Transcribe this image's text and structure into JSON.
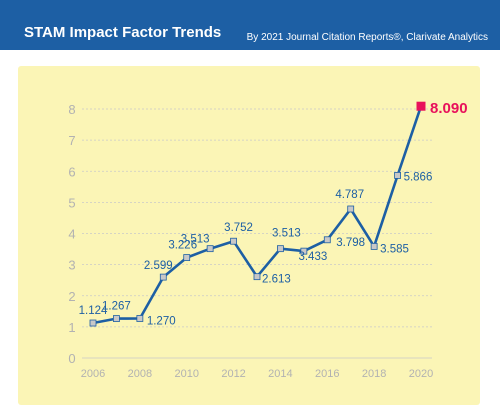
{
  "header": {
    "title": "STAM Impact Factor Trends",
    "source": "By 2021 Journal Citation Reports®, Clarivate Analytics"
  },
  "colors": {
    "header_bg": "#1d5fa4",
    "panel_bg": "#fbf5b6",
    "line": "#1d5fa4",
    "label": "#1d5fa4",
    "marker_fill": "#c8c8c8",
    "highlight": "#e8115b",
    "axis_text": "#b2b2b2",
    "grid": "#c9c9c9"
  },
  "chart_data": {
    "type": "line",
    "x": [
      2006,
      2007,
      2008,
      2009,
      2010,
      2011,
      2012,
      2013,
      2014,
      2015,
      2016,
      2017,
      2018,
      2019,
      2020
    ],
    "series": [
      {
        "values": [
          1.124,
          1.267,
          1.27,
          2.599,
          3.226,
          3.513,
          3.752,
          2.613,
          3.513,
          3.433,
          3.798,
          4.787,
          3.585,
          5.866,
          8.09
        ]
      }
    ],
    "data_labels": [
      {
        "x": 2006,
        "text": "1.124"
      },
      {
        "x": 2007,
        "text": "1.267"
      },
      {
        "x": 2008,
        "text": "1.270"
      },
      {
        "x": 2009,
        "text": "2.599"
      },
      {
        "x": 2010,
        "text": "3.226"
      },
      {
        "x": 2011,
        "text": "3.513"
      },
      {
        "x": 2012,
        "text": "3.752"
      },
      {
        "x": 2013,
        "text": "2.613"
      },
      {
        "x": 2014,
        "text": "3.513"
      },
      {
        "x": 2015,
        "text": "3.433"
      },
      {
        "x": 2016,
        "text": "3.798"
      },
      {
        "x": 2017,
        "text": "4.787"
      },
      {
        "x": 2018,
        "text": "3.585"
      },
      {
        "x": 2019,
        "text": "5.866"
      },
      {
        "x": 2020,
        "text": "8.090"
      }
    ],
    "highlight_x": 2020,
    "x_ticks": [
      2006,
      2008,
      2010,
      2012,
      2014,
      2016,
      2018,
      2020
    ],
    "x_tick_labels": [
      "2006",
      "2008",
      "2010",
      "2012",
      "2014",
      "2016",
      "2018",
      "2020"
    ],
    "y_ticks": [
      0,
      1,
      2,
      3,
      4,
      5,
      6,
      7,
      8
    ],
    "y_tick_labels": [
      "0",
      "1",
      "2",
      "3",
      "4",
      "5",
      "6",
      "7",
      "8"
    ],
    "xlim": [
      2005.5,
      2020.5
    ],
    "ylim": [
      0,
      8
    ],
    "grid": "horizontal",
    "title": "",
    "xlabel": "",
    "ylabel": ""
  }
}
